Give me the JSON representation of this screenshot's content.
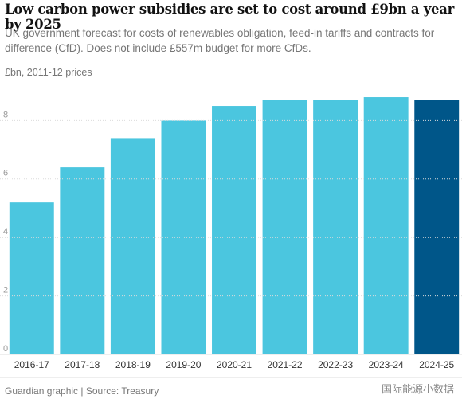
{
  "chart_data": {
    "type": "bar",
    "title": "Low carbon power subsidies are set to cost around £9bn a year by 2025",
    "subtitle": "UK government forecast for costs of renewables obligation, feed-in tariffs and contracts for difference (CfD). Does not include £557m budget for more CfDs.",
    "y_label": "£bn, 2011-12 prices",
    "source": "Guardian graphic | Source: Treasury",
    "watermark": "国际能源小数据",
    "categories": [
      "2016-17",
      "2017-18",
      "2018-19",
      "2019-20",
      "2020-21",
      "2021-22",
      "2022-23",
      "2023-24",
      "2024-25"
    ],
    "values": [
      5.2,
      6.4,
      7.4,
      8.0,
      8.5,
      8.7,
      8.7,
      8.8,
      8.7
    ],
    "colors": [
      "#4bc6df",
      "#4bc6df",
      "#4bc6df",
      "#4bc6df",
      "#4bc6df",
      "#4bc6df",
      "#4bc6df",
      "#4bc6df",
      "#005689"
    ],
    "ylim": [
      0,
      9
    ],
    "yticks": [
      0,
      2,
      4,
      6,
      8
    ],
    "grid": true
  }
}
